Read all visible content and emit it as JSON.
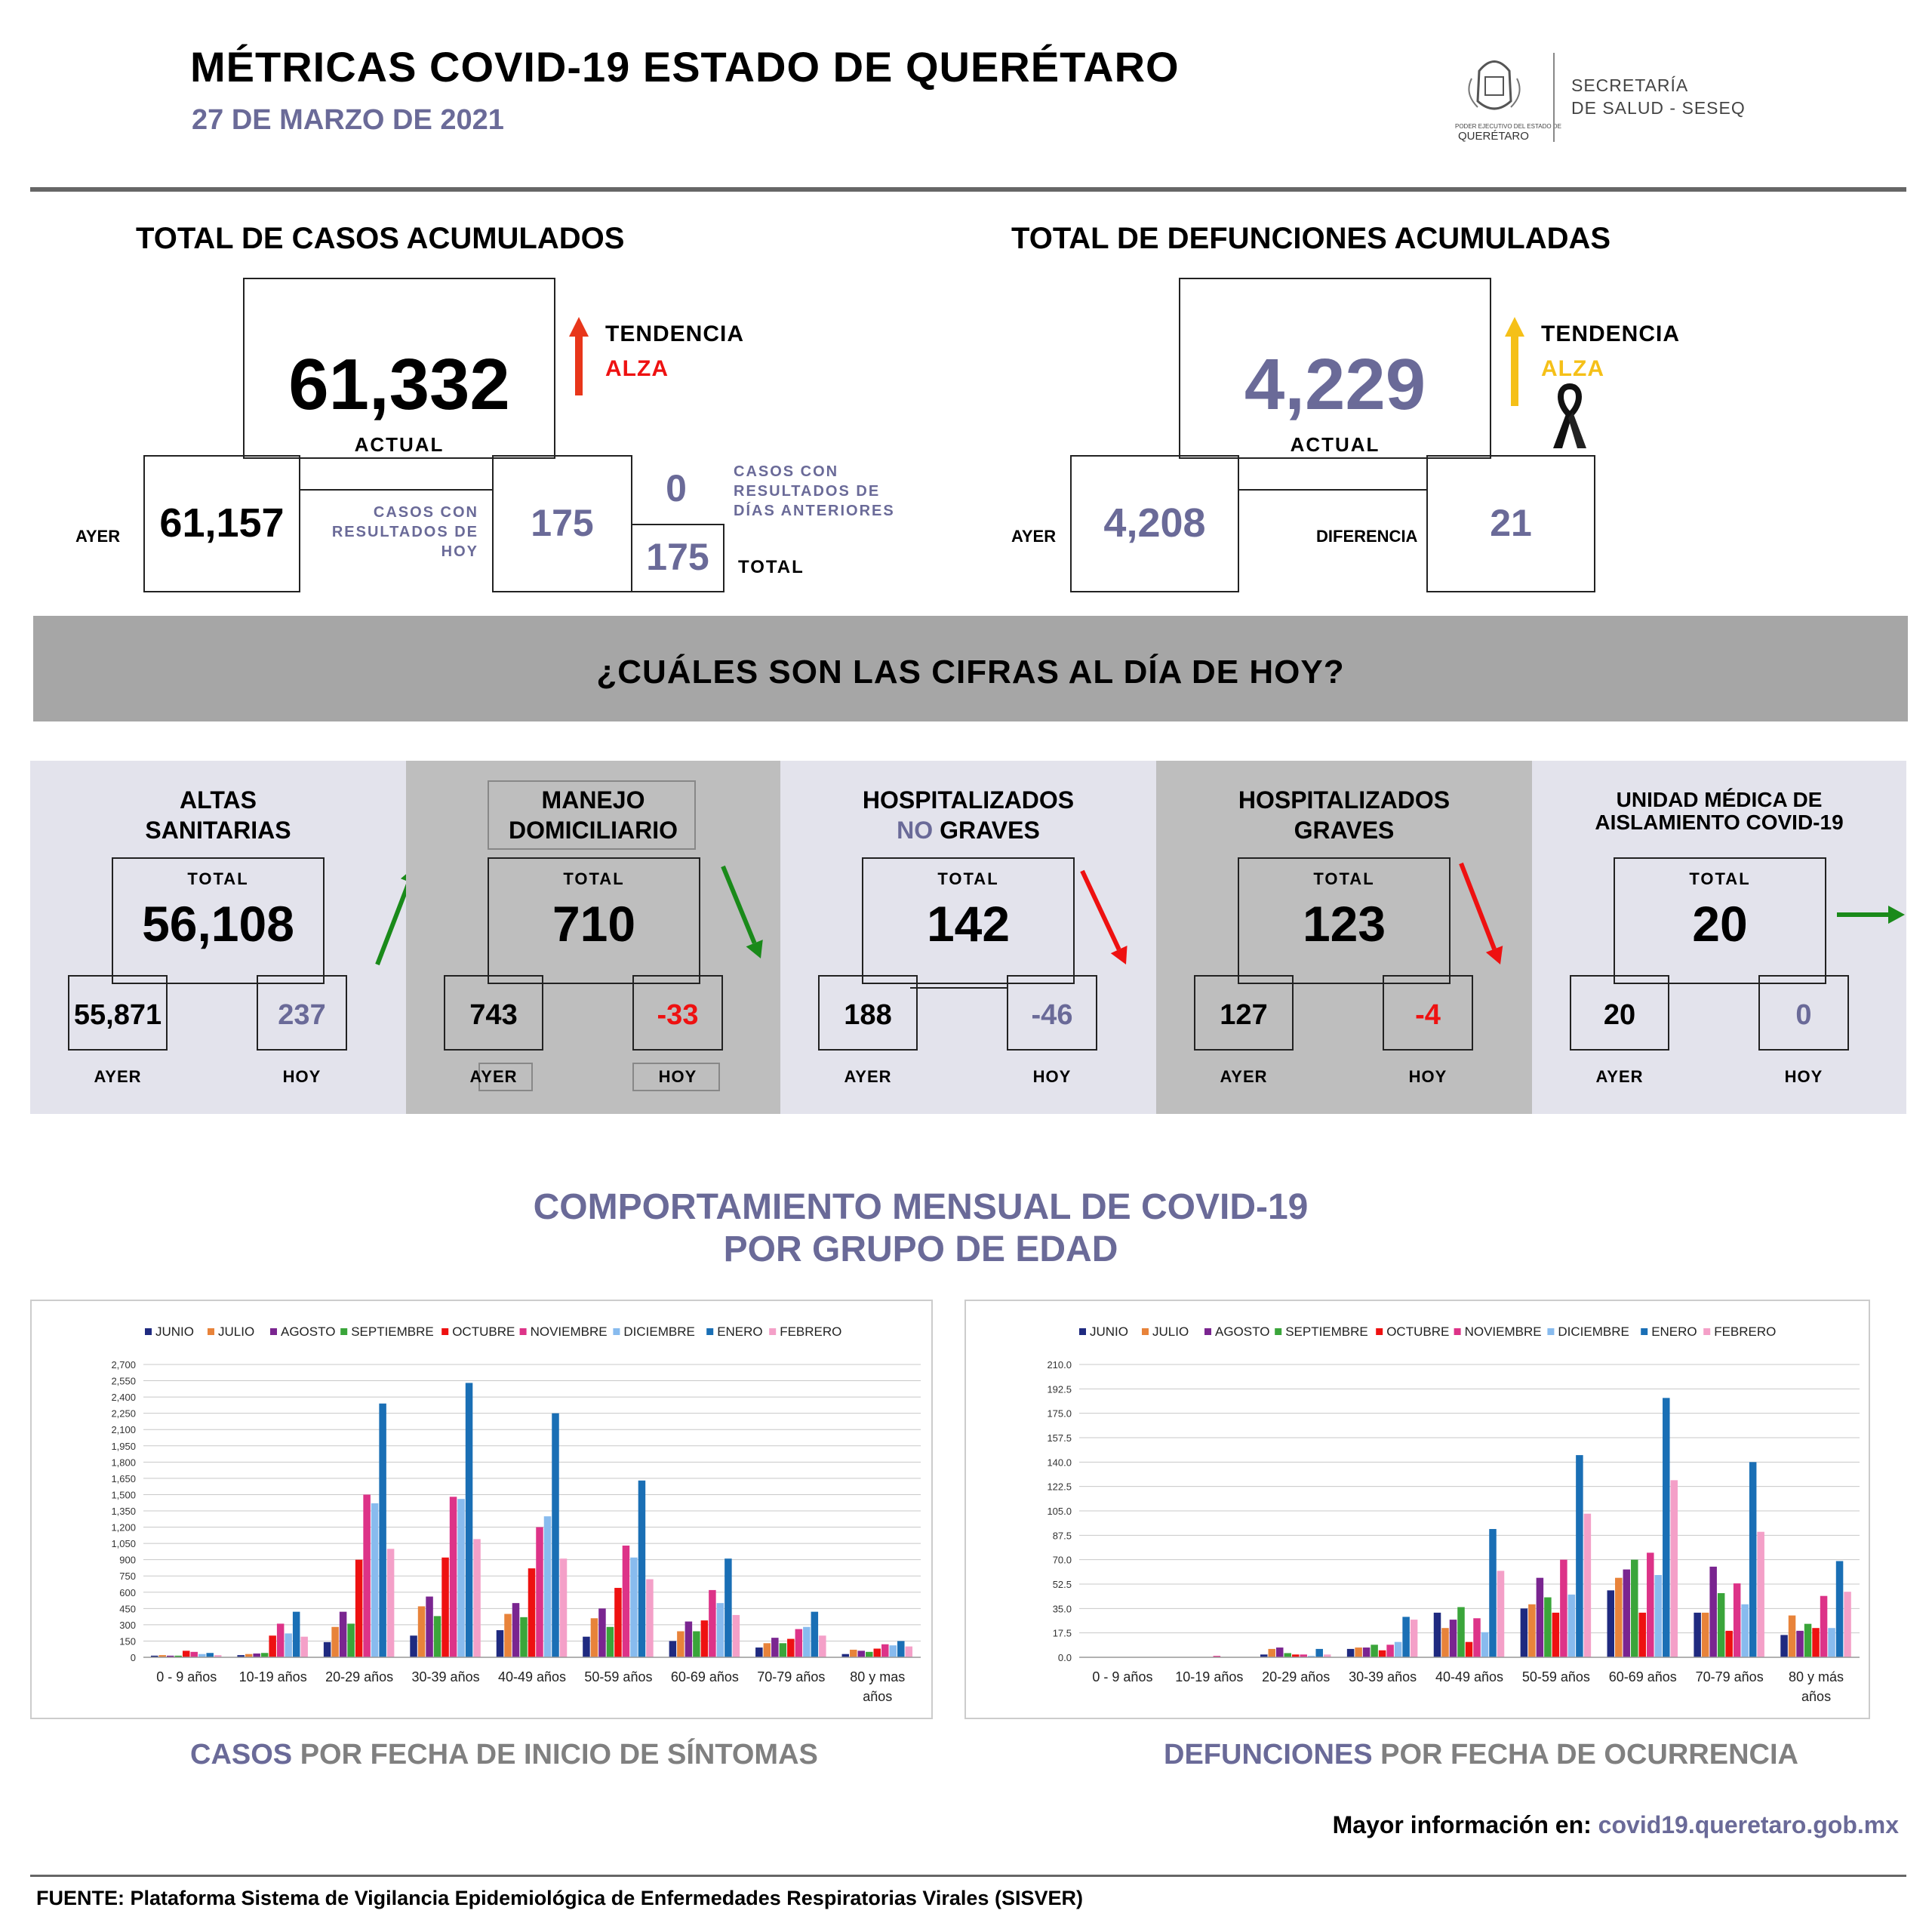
{
  "header": {
    "title": "MÉTRICAS COVID-19 ESTADO DE QUERÉTARO",
    "date": "27 DE MARZO DE 2021",
    "logo_small": "PODER EJECUTIVO DEL ESTADO DE",
    "logo_state": "QUERÉTARO",
    "dept_line1": "SECRETARÍA",
    "dept_line2": "DE SALUD - SESEQ"
  },
  "cases": {
    "title": "TOTAL DE CASOS ACUMULADOS",
    "actual": "61,332",
    "actual_label": "ACTUAL",
    "trend_label": "TENDENCIA",
    "trend_value": "ALZA",
    "ayer_label": "AYER",
    "ayer": "61,157",
    "today_label": "CASOS CON RESULTADOS DE HOY",
    "today": "175",
    "prev_label": "CASOS CON RESULTADOS DE DÍAS ANTERIORES",
    "prev": "0",
    "total": "175",
    "total_label": "TOTAL"
  },
  "deaths": {
    "title": "TOTAL DE DEFUNCIONES ACUMULADAS",
    "actual": "4,229",
    "actual_label": "ACTUAL",
    "trend_label": "TENDENCIA",
    "trend_value": "ALZA",
    "ayer_label": "AYER",
    "ayer": "4,208",
    "diff_label": "DIFERENCIA",
    "diff": "21"
  },
  "banner": {
    "text": "¿CUÁLES SON LAS CIFRAS AL DÍA DE HOY?"
  },
  "panels": [
    {
      "title1": "ALTAS",
      "title2": "SANITARIAS",
      "total_label": "TOTAL",
      "total": "56,108",
      "ayer": "55,871",
      "hoy": "237",
      "ayer_label": "AYER",
      "hoy_label": "HOY"
    },
    {
      "title1": "MANEJO",
      "title2": "DOMICILIARIO",
      "total_label": "TOTAL",
      "total": "710",
      "ayer": "743",
      "hoy": "-33",
      "ayer_label": "AYER",
      "hoy_label": "HOY"
    },
    {
      "title1": "HOSPITALIZADOS",
      "title2a": "NO",
      "title2b": " GRAVES",
      "total_label": "TOTAL",
      "total": "142",
      "ayer": "188",
      "hoy": "-46",
      "ayer_label": "AYER",
      "hoy_label": "HOY"
    },
    {
      "title1": "HOSPITALIZADOS",
      "title2": "GRAVES",
      "total_label": "TOTAL",
      "total": "123",
      "ayer": "127",
      "hoy": "-4",
      "ayer_label": "AYER",
      "hoy_label": "HOY"
    },
    {
      "title1": "UNIDAD MÉDICA DE",
      "title2": "AISLAMIENTO COVID-19",
      "total_label": "TOTAL",
      "total": "20",
      "ayer": "20",
      "hoy": "0",
      "ayer_label": "AYER",
      "hoy_label": "HOY"
    }
  ],
  "charts_title": {
    "line1": "COMPORTAMIENTO MENSUAL DE COVID-19",
    "line2": "POR GRUPO DE EDAD"
  },
  "chart_data": [
    {
      "type": "bar",
      "caption_a": "CASOS",
      "caption_b": " POR FECHA DE INICIO DE SÍNTOMAS",
      "categories": [
        "0 - 9 años",
        "10-19 años",
        "20-29 años",
        "30-39 años",
        "40-49 años",
        "50-59 años",
        "60-69 años",
        "70-79 años",
        "80 y mas años"
      ],
      "ylim": [
        0,
        2700
      ],
      "yticks": [
        "0",
        "150",
        "300",
        "450",
        "600",
        "750",
        "900",
        "1,050",
        "1,200",
        "1,350",
        "1,500",
        "1,650",
        "1,800",
        "1,950",
        "2,100",
        "2,250",
        "2,400",
        "2,550",
        "2,700"
      ],
      "series": [
        {
          "name": "JUNIO",
          "color": "#1f2a80",
          "values": [
            15,
            20,
            140,
            200,
            250,
            190,
            150,
            90,
            30
          ]
        },
        {
          "name": "JULIO",
          "color": "#e8833a",
          "values": [
            20,
            30,
            280,
            470,
            400,
            360,
            240,
            130,
            70
          ]
        },
        {
          "name": "AGOSTO",
          "color": "#7a2590",
          "values": [
            15,
            35,
            420,
            560,
            500,
            450,
            330,
            180,
            60
          ]
        },
        {
          "name": "SEPTIEMBRE",
          "color": "#3aa53a",
          "values": [
            15,
            40,
            310,
            380,
            370,
            280,
            240,
            130,
            50
          ]
        },
        {
          "name": "OCTUBRE",
          "color": "#ee1111",
          "values": [
            60,
            200,
            900,
            920,
            820,
            640,
            340,
            170,
            80
          ]
        },
        {
          "name": "NOVIEMBRE",
          "color": "#dd3388",
          "values": [
            50,
            310,
            1500,
            1480,
            1200,
            1030,
            620,
            260,
            120
          ]
        },
        {
          "name": "DICIEMBRE",
          "color": "#88bbee",
          "values": [
            30,
            220,
            1420,
            1460,
            1300,
            920,
            500,
            280,
            110
          ]
        },
        {
          "name": "ENERO",
          "color": "#1a6fb5",
          "values": [
            40,
            420,
            2340,
            2530,
            2250,
            1630,
            910,
            420,
            150
          ]
        },
        {
          "name": "FEBRERO",
          "color": "#f4a0c8",
          "values": [
            20,
            190,
            1000,
            1090,
            910,
            720,
            390,
            200,
            100
          ]
        }
      ]
    },
    {
      "type": "bar",
      "caption_a": "DEFUNCIONES",
      "caption_b": " POR FECHA DE OCURRENCIA",
      "categories": [
        "0 - 9 años",
        "10-19 años",
        "20-29 años",
        "30-39 años",
        "40-49 años",
        "50-59 años",
        "60-69 años",
        "70-79 años",
        "80 y más años"
      ],
      "ylim": [
        0,
        210
      ],
      "yticks": [
        "0.0",
        "17.5",
        "35.0",
        "52.5",
        "70.0",
        "87.5",
        "105.0",
        "122.5",
        "140.0",
        "157.5",
        "175.0",
        "192.5",
        "210.0"
      ],
      "series": [
        {
          "name": "JUNIO",
          "color": "#1f2a80",
          "values": [
            0,
            0,
            2,
            6,
            32,
            35,
            48,
            32,
            16
          ]
        },
        {
          "name": "JULIO",
          "color": "#e8833a",
          "values": [
            0,
            0,
            6,
            7,
            21,
            38,
            57,
            32,
            30
          ]
        },
        {
          "name": "AGOSTO",
          "color": "#7a2590",
          "values": [
            0,
            0,
            7,
            7,
            27,
            57,
            63,
            65,
            19
          ]
        },
        {
          "name": "SEPTIEMBRE",
          "color": "#3aa53a",
          "values": [
            0,
            0,
            3,
            9,
            36,
            43,
            70,
            46,
            24
          ]
        },
        {
          "name": "OCTUBRE",
          "color": "#ee1111",
          "values": [
            0,
            0,
            2,
            5,
            11,
            32,
            32,
            19,
            21
          ]
        },
        {
          "name": "NOVIEMBRE",
          "color": "#dd3388",
          "values": [
            0,
            1,
            2,
            9,
            28,
            70,
            75,
            53,
            44
          ]
        },
        {
          "name": "DICIEMBRE",
          "color": "#88bbee",
          "values": [
            0,
            0,
            1,
            11,
            18,
            45,
            59,
            38,
            21
          ]
        },
        {
          "name": "ENERO",
          "color": "#1a6fb5",
          "values": [
            0,
            0,
            6,
            29,
            92,
            145,
            186,
            140,
            69
          ]
        },
        {
          "name": "FEBRERO",
          "color": "#f4a0c8",
          "values": [
            0,
            0,
            2,
            27,
            62,
            103,
            127,
            90,
            47
          ]
        }
      ]
    }
  ],
  "footer": {
    "more_label": "Mayor información en:",
    "url": " covid19.queretaro.gob.mx",
    "source": "FUENTE: Plataforma Sistema  de Vigilancia Epidemiológica de Enfermedades Respiratorias Virales (SISVER)"
  }
}
